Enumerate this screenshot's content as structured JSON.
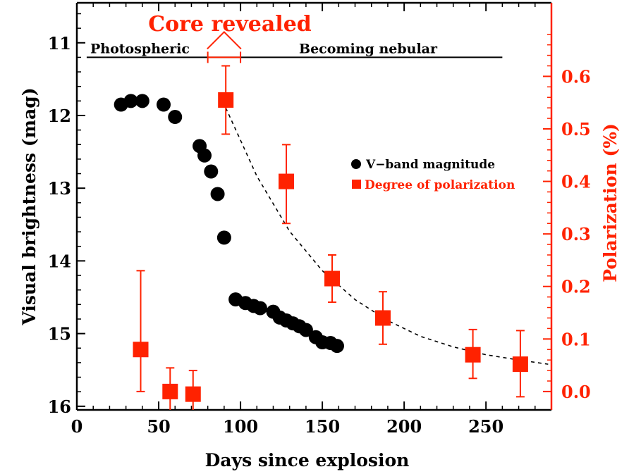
{
  "chart_data": {
    "type": "scatter",
    "xlabel": "Days since explosion",
    "ylabel_left": "Visual brightness (mag)",
    "ylabel_right": "Polarization (%)",
    "xlim": [
      0,
      290
    ],
    "ylim_left": [
      16.05,
      10.45
    ],
    "ylim_right": [
      -0.035,
      0.74
    ],
    "x_ticks": [
      0,
      50,
      100,
      150,
      200,
      250
    ],
    "y_left_ticks": [
      11,
      12,
      13,
      14,
      15,
      16
    ],
    "y_right_ticks": [
      "0.0",
      "0.1",
      "0.2",
      "0.3",
      "0.4",
      "0.5",
      "0.6"
    ],
    "colors": {
      "magnitude": "#000000",
      "polarization": "#ff2200"
    },
    "annotations": {
      "core_revealed": "Core revealed",
      "photospheric": "Photospheric",
      "becoming_nebular": "Becoming nebular",
      "phase_line_x": [
        6,
        260
      ],
      "phase_line_mag": 11.2,
      "core_bracket_x": [
        80,
        100
      ]
    },
    "series": [
      {
        "name": "V−band magnitude",
        "marker": "circle",
        "axis": "left",
        "points": [
          [
            27,
            11.85
          ],
          [
            33,
            11.8
          ],
          [
            40,
            11.8
          ],
          [
            53,
            11.85
          ],
          [
            60,
            12.02
          ],
          [
            75,
            12.42
          ],
          [
            78,
            12.55
          ],
          [
            82,
            12.77
          ],
          [
            86,
            13.08
          ],
          [
            90,
            13.68
          ],
          [
            97,
            14.53
          ],
          [
            103,
            14.58
          ],
          [
            108,
            14.62
          ],
          [
            112,
            14.65
          ],
          [
            120,
            14.7
          ],
          [
            124,
            14.78
          ],
          [
            128,
            14.82
          ],
          [
            132,
            14.86
          ],
          [
            136,
            14.9
          ],
          [
            140,
            14.95
          ],
          [
            146,
            15.05
          ],
          [
            150,
            15.12
          ],
          [
            155,
            15.13
          ],
          [
            159,
            15.17
          ]
        ]
      },
      {
        "name": "Degree of polarization",
        "marker": "square",
        "axis": "right",
        "points": [
          [
            39,
            0.08,
            0.0,
            0.23
          ],
          [
            57,
            0.0,
            -0.035,
            0.045
          ],
          [
            71,
            -0.005,
            -0.035,
            0.04
          ],
          [
            91,
            0.555,
            0.49,
            0.62
          ],
          [
            128,
            0.4,
            0.32,
            0.47
          ],
          [
            156,
            0.215,
            0.17,
            0.26
          ],
          [
            187,
            0.14,
            0.09,
            0.19
          ],
          [
            242,
            0.07,
            0.025,
            0.118
          ],
          [
            271,
            0.052,
            -0.01,
            0.116
          ]
        ]
      }
    ],
    "fit_curve": {
      "style": "dashed",
      "points": [
        [
          91,
          0.54
        ],
        [
          110,
          0.41
        ],
        [
          130,
          0.305
        ],
        [
          150,
          0.23
        ],
        [
          170,
          0.175
        ],
        [
          190,
          0.135
        ],
        [
          210,
          0.105
        ],
        [
          230,
          0.085
        ],
        [
          250,
          0.07
        ],
        [
          270,
          0.06
        ],
        [
          288,
          0.052
        ]
      ]
    }
  }
}
